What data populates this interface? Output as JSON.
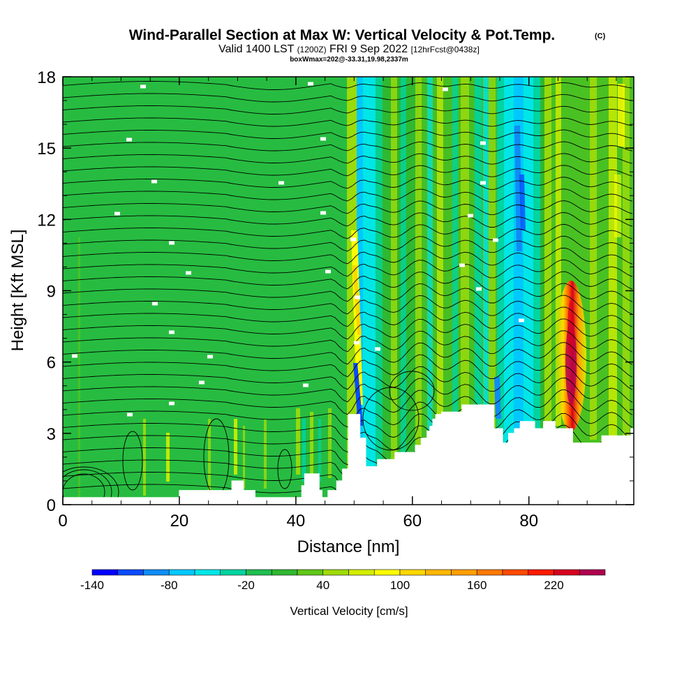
{
  "chart_data": {
    "type": "heatmap",
    "title": "Wind-Parallel Section at Max W: Vertical Velocity & Pot.Temp.",
    "title_mark": "(C)",
    "subtitle": {
      "valid": "Valid 1400 LST",
      "utc": "(1200Z)",
      "date": "FRI 9 Sep 2022",
      "forecast": "[12hrFcst@0438z]"
    },
    "box_note": "boxWmax=202@-33.31,19.98,2337m",
    "xlabel": "Distance [nm]",
    "ylabel": "Height [Kft MSL]",
    "xlim": [
      0,
      98
    ],
    "ylim": [
      0,
      18
    ],
    "x_ticks": [
      "0",
      "20",
      "40",
      "60",
      "80"
    ],
    "y_ticks": [
      "0",
      "3",
      "6",
      "9",
      "12",
      "15",
      "18"
    ],
    "terrain": {
      "distance": [
        0,
        20,
        20,
        29,
        29,
        31,
        31,
        33,
        33,
        41,
        41,
        41.5,
        41.5,
        44,
        44,
        44.5,
        44.5,
        45.5,
        45.5,
        47,
        47,
        48,
        48,
        49,
        49,
        51,
        51,
        52,
        52,
        54,
        54,
        57,
        57,
        60.5,
        60.5,
        61.5,
        61.5,
        62.5,
        62.5,
        63,
        63,
        63.5,
        63.5,
        64,
        64,
        65,
        65,
        68.5,
        68.5,
        71,
        71,
        74,
        74,
        75.5,
        75.5,
        76.5,
        76.5,
        77.5,
        77.5,
        78.5,
        78.5,
        81,
        81,
        82.5,
        82.5,
        84.5,
        84.5,
        87.5,
        87.5,
        89.5,
        89.5,
        92.5,
        92.5,
        97.5,
        97.5,
        98
      ],
      "height_kft": [
        0.3,
        0.3,
        0.6,
        0.6,
        1.0,
        1.0,
        0.6,
        0.6,
        0.3,
        0.3,
        0.8,
        0.8,
        1.3,
        1.3,
        0.6,
        0.6,
        0.3,
        0.3,
        0.6,
        0.6,
        1.0,
        1.0,
        1.5,
        1.5,
        3.8,
        3.8,
        2.8,
        2.8,
        1.6,
        1.6,
        1.9,
        1.9,
        2.2,
        2.2,
        2.5,
        2.5,
        2.8,
        2.8,
        3.1,
        3.1,
        3.3,
        3.3,
        3.6,
        3.6,
        3.8,
        3.8,
        3.9,
        3.9,
        4.2,
        4.2,
        4.2,
        4.2,
        3.2,
        3.2,
        2.6,
        2.6,
        3.0,
        3.0,
        3.2,
        3.2,
        3.5,
        3.5,
        3.2,
        3.2,
        3.5,
        3.5,
        3.2,
        3.2,
        2.6,
        2.6,
        2.6,
        2.6,
        2.9,
        2.9,
        3.2,
        3.2
      ]
    },
    "updraft_max": {
      "distance": 87.5,
      "height_kft": 6.3,
      "value": 220
    },
    "colorbar": {
      "label": "Vertical Velocity [cm/s]",
      "tick_labels": [
        "-140",
        "-80",
        "-20",
        "40",
        "100",
        "160",
        "220"
      ],
      "tick_values": [
        -140,
        -80,
        -20,
        40,
        100,
        160,
        220
      ],
      "levels": [
        -140,
        -120,
        -100,
        -80,
        -60,
        -40,
        -20,
        0,
        20,
        40,
        60,
        80,
        100,
        120,
        140,
        160,
        180,
        200,
        220,
        240,
        260
      ],
      "colors": [
        "#0000ff",
        "#0a4cff",
        "#0f8cf5",
        "#00c8ff",
        "#00e6e6",
        "#00d4a0",
        "#20bf50",
        "#30b830",
        "#60c818",
        "#a0dc0a",
        "#d2ee00",
        "#ffff00",
        "#ffd700",
        "#ffb700",
        "#ff9f00",
        "#ff7800",
        "#ff4a00",
        "#ff1a00",
        "#d80020",
        "#b00050",
        "#880070"
      ]
    }
  }
}
